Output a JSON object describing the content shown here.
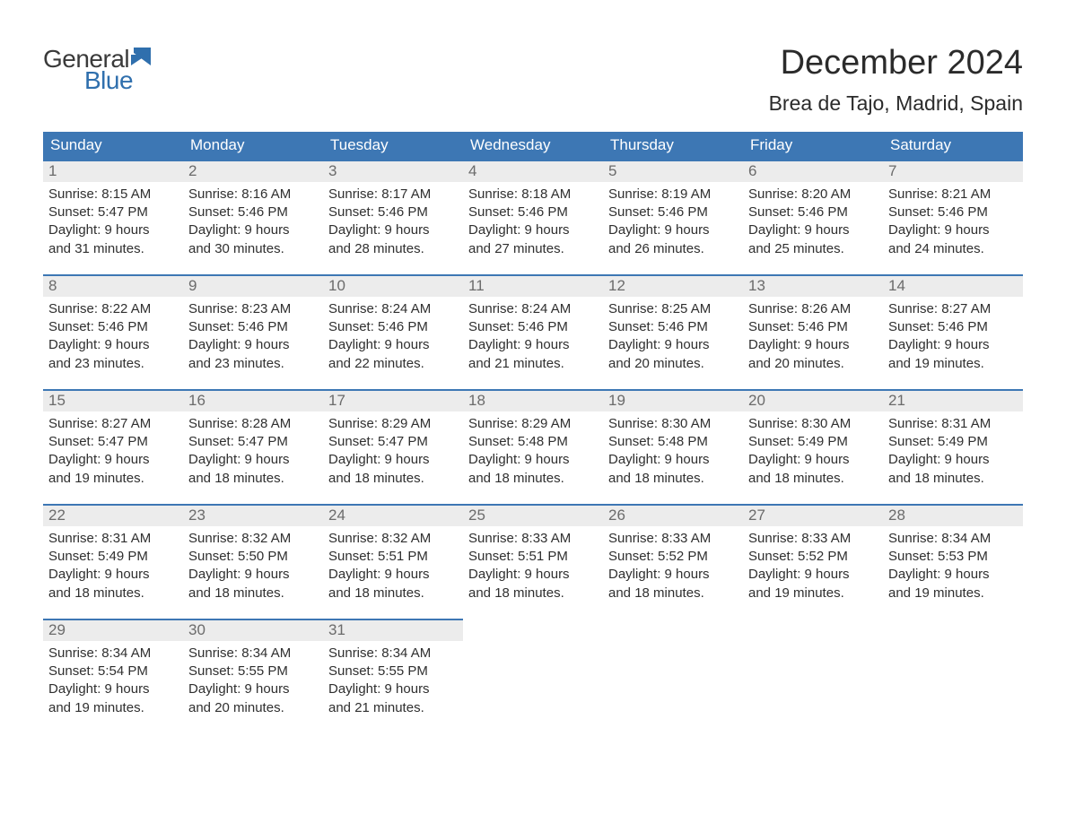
{
  "brand": {
    "general": "General",
    "blue": "Blue",
    "accent_color": "#2f6fad"
  },
  "title": {
    "month": "December 2024",
    "location": "Brea de Tajo, Madrid, Spain"
  },
  "colors": {
    "header_bar": "#3d77b4",
    "daynum_bg": "#ececec",
    "daynum_text": "#6b6b6b",
    "text": "#2f2f2f",
    "page_bg": "#ffffff",
    "border_accent": "#3d77b4"
  },
  "dow": [
    "Sunday",
    "Monday",
    "Tuesday",
    "Wednesday",
    "Thursday",
    "Friday",
    "Saturday"
  ],
  "weeks": [
    [
      {
        "n": "1",
        "sunrise": "8:15 AM",
        "sunset": "5:47 PM",
        "dl1": "Daylight: 9 hours",
        "dl2": "and 31 minutes."
      },
      {
        "n": "2",
        "sunrise": "8:16 AM",
        "sunset": "5:46 PM",
        "dl1": "Daylight: 9 hours",
        "dl2": "and 30 minutes."
      },
      {
        "n": "3",
        "sunrise": "8:17 AM",
        "sunset": "5:46 PM",
        "dl1": "Daylight: 9 hours",
        "dl2": "and 28 minutes."
      },
      {
        "n": "4",
        "sunrise": "8:18 AM",
        "sunset": "5:46 PM",
        "dl1": "Daylight: 9 hours",
        "dl2": "and 27 minutes."
      },
      {
        "n": "5",
        "sunrise": "8:19 AM",
        "sunset": "5:46 PM",
        "dl1": "Daylight: 9 hours",
        "dl2": "and 26 minutes."
      },
      {
        "n": "6",
        "sunrise": "8:20 AM",
        "sunset": "5:46 PM",
        "dl1": "Daylight: 9 hours",
        "dl2": "and 25 minutes."
      },
      {
        "n": "7",
        "sunrise": "8:21 AM",
        "sunset": "5:46 PM",
        "dl1": "Daylight: 9 hours",
        "dl2": "and 24 minutes."
      }
    ],
    [
      {
        "n": "8",
        "sunrise": "8:22 AM",
        "sunset": "5:46 PM",
        "dl1": "Daylight: 9 hours",
        "dl2": "and 23 minutes."
      },
      {
        "n": "9",
        "sunrise": "8:23 AM",
        "sunset": "5:46 PM",
        "dl1": "Daylight: 9 hours",
        "dl2": "and 23 minutes."
      },
      {
        "n": "10",
        "sunrise": "8:24 AM",
        "sunset": "5:46 PM",
        "dl1": "Daylight: 9 hours",
        "dl2": "and 22 minutes."
      },
      {
        "n": "11",
        "sunrise": "8:24 AM",
        "sunset": "5:46 PM",
        "dl1": "Daylight: 9 hours",
        "dl2": "and 21 minutes."
      },
      {
        "n": "12",
        "sunrise": "8:25 AM",
        "sunset": "5:46 PM",
        "dl1": "Daylight: 9 hours",
        "dl2": "and 20 minutes."
      },
      {
        "n": "13",
        "sunrise": "8:26 AM",
        "sunset": "5:46 PM",
        "dl1": "Daylight: 9 hours",
        "dl2": "and 20 minutes."
      },
      {
        "n": "14",
        "sunrise": "8:27 AM",
        "sunset": "5:46 PM",
        "dl1": "Daylight: 9 hours",
        "dl2": "and 19 minutes."
      }
    ],
    [
      {
        "n": "15",
        "sunrise": "8:27 AM",
        "sunset": "5:47 PM",
        "dl1": "Daylight: 9 hours",
        "dl2": "and 19 minutes."
      },
      {
        "n": "16",
        "sunrise": "8:28 AM",
        "sunset": "5:47 PM",
        "dl1": "Daylight: 9 hours",
        "dl2": "and 18 minutes."
      },
      {
        "n": "17",
        "sunrise": "8:29 AM",
        "sunset": "5:47 PM",
        "dl1": "Daylight: 9 hours",
        "dl2": "and 18 minutes."
      },
      {
        "n": "18",
        "sunrise": "8:29 AM",
        "sunset": "5:48 PM",
        "dl1": "Daylight: 9 hours",
        "dl2": "and 18 minutes."
      },
      {
        "n": "19",
        "sunrise": "8:30 AM",
        "sunset": "5:48 PM",
        "dl1": "Daylight: 9 hours",
        "dl2": "and 18 minutes."
      },
      {
        "n": "20",
        "sunrise": "8:30 AM",
        "sunset": "5:49 PM",
        "dl1": "Daylight: 9 hours",
        "dl2": "and 18 minutes."
      },
      {
        "n": "21",
        "sunrise": "8:31 AM",
        "sunset": "5:49 PM",
        "dl1": "Daylight: 9 hours",
        "dl2": "and 18 minutes."
      }
    ],
    [
      {
        "n": "22",
        "sunrise": "8:31 AM",
        "sunset": "5:49 PM",
        "dl1": "Daylight: 9 hours",
        "dl2": "and 18 minutes."
      },
      {
        "n": "23",
        "sunrise": "8:32 AM",
        "sunset": "5:50 PM",
        "dl1": "Daylight: 9 hours",
        "dl2": "and 18 minutes."
      },
      {
        "n": "24",
        "sunrise": "8:32 AM",
        "sunset": "5:51 PM",
        "dl1": "Daylight: 9 hours",
        "dl2": "and 18 minutes."
      },
      {
        "n": "25",
        "sunrise": "8:33 AM",
        "sunset": "5:51 PM",
        "dl1": "Daylight: 9 hours",
        "dl2": "and 18 minutes."
      },
      {
        "n": "26",
        "sunrise": "8:33 AM",
        "sunset": "5:52 PM",
        "dl1": "Daylight: 9 hours",
        "dl2": "and 18 minutes."
      },
      {
        "n": "27",
        "sunrise": "8:33 AM",
        "sunset": "5:52 PM",
        "dl1": "Daylight: 9 hours",
        "dl2": "and 19 minutes."
      },
      {
        "n": "28",
        "sunrise": "8:34 AM",
        "sunset": "5:53 PM",
        "dl1": "Daylight: 9 hours",
        "dl2": "and 19 minutes."
      }
    ],
    [
      {
        "n": "29",
        "sunrise": "8:34 AM",
        "sunset": "5:54 PM",
        "dl1": "Daylight: 9 hours",
        "dl2": "and 19 minutes."
      },
      {
        "n": "30",
        "sunrise": "8:34 AM",
        "sunset": "5:55 PM",
        "dl1": "Daylight: 9 hours",
        "dl2": "and 20 minutes."
      },
      {
        "n": "31",
        "sunrise": "8:34 AM",
        "sunset": "5:55 PM",
        "dl1": "Daylight: 9 hours",
        "dl2": "and 21 minutes."
      },
      null,
      null,
      null,
      null
    ]
  ],
  "labels": {
    "sunrise_prefix": "Sunrise: ",
    "sunset_prefix": "Sunset: "
  }
}
